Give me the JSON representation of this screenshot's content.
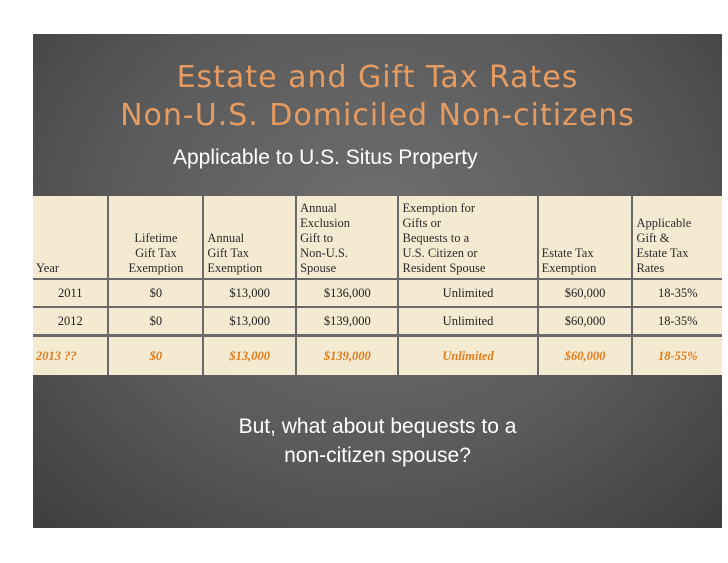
{
  "title_line1": "Estate and Gift Tax Rates",
  "title_line2": "Non-U.S. Domiciled Non-citizens",
  "subtitle": "Applicable to U.S. Situs Property",
  "table": {
    "headers": [
      [
        "Year"
      ],
      [
        "Lifetime",
        "Gift Tax",
        "Exemption"
      ],
      [
        "Annual",
        "Gift Tax",
        "Exemption"
      ],
      [
        "Annual",
        "Exclusion",
        "Gift to",
        "Non-U.S.",
        "Spouse"
      ],
      [
        "Exemption for",
        "Gifts  or",
        "Bequests to a",
        "U.S. Citizen or",
        "Resident Spouse"
      ],
      [
        "Estate Tax",
        "Exemption"
      ],
      [
        "Applicable",
        "Gift &",
        "Estate Tax",
        "Rates"
      ]
    ],
    "rows": [
      [
        "2011",
        "$0",
        "$13,000",
        "$136,000",
        "Unlimited",
        "$60,000",
        "18-35%"
      ],
      [
        "2012",
        "$0",
        "$13,000",
        "$139,000",
        "Unlimited",
        "$60,000",
        "18-35%"
      ],
      [
        "2013 ??",
        "$0",
        "$13,000",
        "$139,000",
        "Unlimited",
        "$60,000",
        "18-55%"
      ]
    ]
  },
  "bottom_line1": "But, what about bequests to a",
  "bottom_line2": "non-citizen spouse?",
  "colors": {
    "title": "#e69b61",
    "highlight_row": "#e07b1a",
    "table_bg": "#f4ead2",
    "slide_bg": "#5a5a5a"
  }
}
